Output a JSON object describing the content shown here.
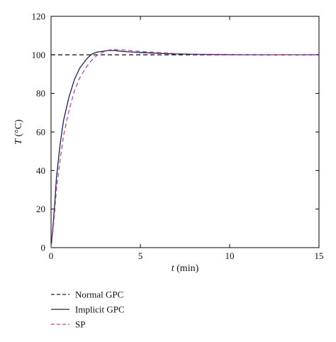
{
  "chart_data": {
    "type": "line",
    "title": "",
    "xlabel_var": "t",
    "xlabel_unit": " (min)",
    "ylabel_var": "T",
    "ylabel_unit": " (°C)",
    "xlim": [
      0,
      15
    ],
    "ylim": [
      0,
      120
    ],
    "xticks": [
      0,
      5,
      10,
      15
    ],
    "yticks": [
      0,
      20,
      40,
      60,
      80,
      100,
      120
    ],
    "grid": false,
    "legend_position": "bottom-left-below-plot",
    "series": [
      {
        "name": "Normal GPC",
        "color": "#222222",
        "dash": "dashed",
        "x": [
          0,
          15
        ],
        "y": [
          100,
          100
        ]
      },
      {
        "name": "Implicit GPC",
        "color": "#1f2150",
        "dash": "solid",
        "x": [
          0,
          0.1,
          0.2,
          0.3,
          0.5,
          0.7,
          1.0,
          1.3,
          1.6,
          2.0,
          2.3,
          2.6,
          3.0,
          3.3,
          3.6,
          4.0,
          4.5,
          5.0,
          6.0,
          7.0,
          8.0,
          10.0,
          12.0,
          14.0,
          15.0
        ],
        "y": [
          0,
          10,
          22,
          36,
          53,
          66,
          78,
          87,
          93,
          98,
          100.5,
          101.5,
          102.0,
          102.3,
          102.2,
          101.8,
          101.5,
          101.2,
          100.8,
          100.5,
          100.3,
          100.1,
          100.0,
          100.0,
          100.1
        ]
      },
      {
        "name": "SP",
        "color": "#b0489a",
        "dash": "dashed",
        "x": [
          0,
          0.1,
          0.2,
          0.3,
          0.5,
          0.7,
          1.0,
          1.3,
          1.6,
          2.0,
          2.3,
          2.6,
          3.0,
          3.3,
          3.6,
          4.0,
          4.5,
          5.0,
          6.0,
          7.0,
          8.0,
          10.0,
          12.0,
          14.0,
          15.0
        ],
        "y": [
          0,
          8,
          18,
          30,
          45,
          58,
          71,
          81,
          88,
          94,
          97.5,
          100,
          101.8,
          102.6,
          102.8,
          102.6,
          102.2,
          101.8,
          101.2,
          100.7,
          100.4,
          100.1,
          100.0,
          100.0,
          100.1
        ]
      }
    ]
  }
}
